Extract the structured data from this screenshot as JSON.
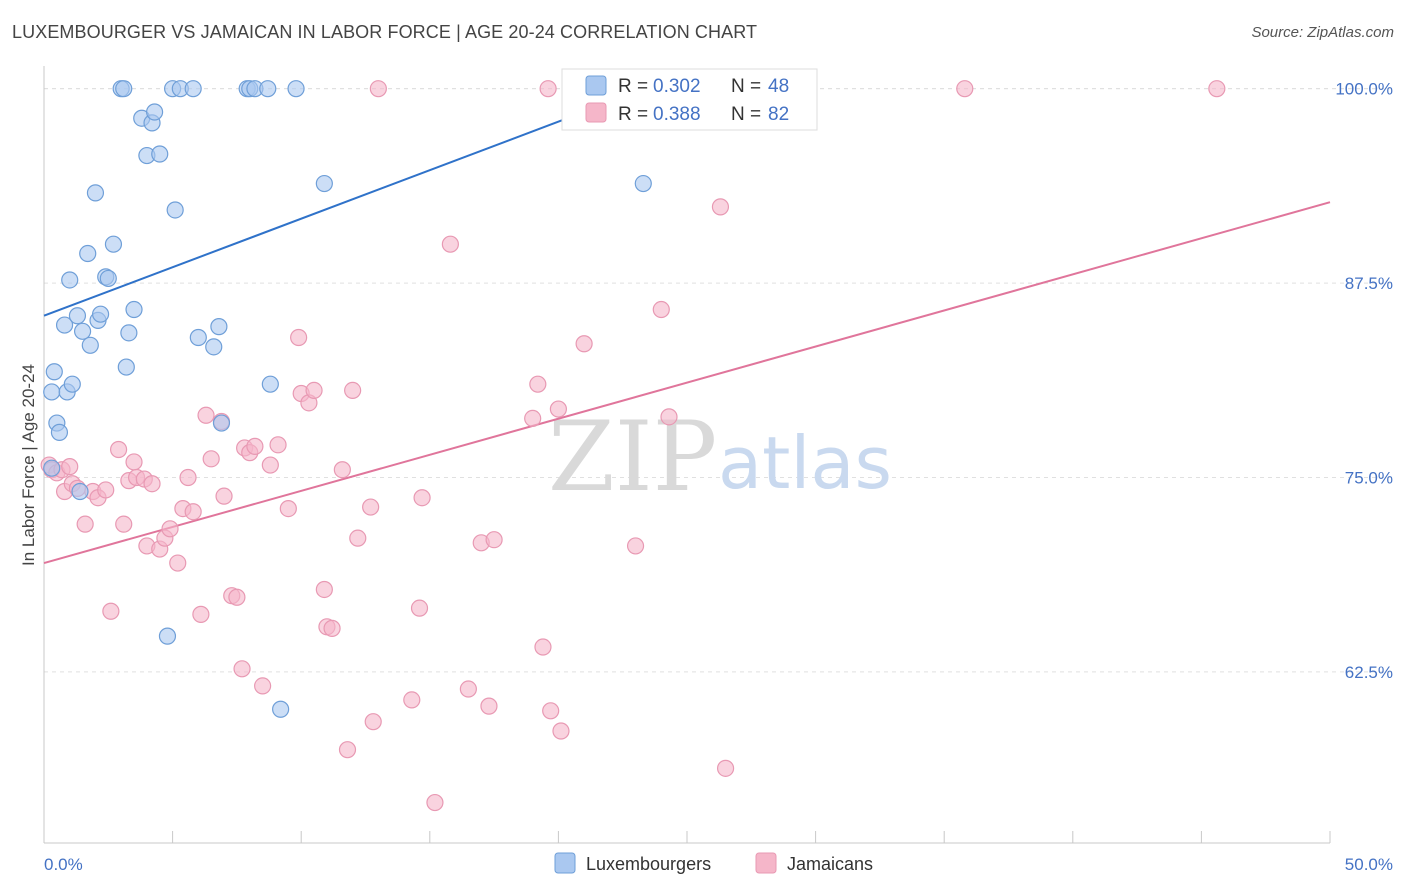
{
  "title": "LUXEMBOURGER VS JAMAICAN IN LABOR FORCE | AGE 20-24 CORRELATION CHART",
  "source": "Source: ZipAtlas.com",
  "watermark": {
    "zip": "ZIP",
    "atlas": "atlas"
  },
  "colors": {
    "blue_fill": "#aac8f0",
    "blue_stroke": "#6f9fd8",
    "blue_line": "#2f72c9",
    "pink_fill": "#f5b6c9",
    "pink_stroke": "#e899b3",
    "pink_line": "#e0759b",
    "grid": "#e0e0e0",
    "tick_text": "#4472c4"
  },
  "legend": {
    "rows": [
      {
        "r_label": "R = ",
        "r_value": "0.302",
        "n_label": "N = ",
        "n_value": "48",
        "series": "blue"
      },
      {
        "r_label": "R = ",
        "r_value": "0.388",
        "n_label": "N = ",
        "n_value": "82",
        "series": "pink"
      }
    ]
  },
  "chart_data": {
    "type": "scatter",
    "title": "LUXEMBOURGER VS JAMAICAN IN LABOR FORCE | AGE 20-24 CORRELATION CHART",
    "xlabel": "",
    "ylabel": "In Labor Force | Age 20-24",
    "xlim": [
      0,
      50
    ],
    "ylim": [
      51.5,
      101.2
    ],
    "x_tick_labels": [
      "0.0%",
      "50.0%"
    ],
    "y_ticks": [
      62.5,
      75.0,
      87.5,
      100.0
    ],
    "y_tick_labels": [
      "62.5%",
      "75.0%",
      "87.5%",
      "100.0%"
    ],
    "grid": true,
    "legend_position": "bottom",
    "series": [
      {
        "name": "Luxembourgers",
        "color": "#aac8f0",
        "trend": {
          "x": [
            0,
            25
          ],
          "y": [
            85.4,
            101.0
          ]
        },
        "points": [
          [
            0.3,
            75.6
          ],
          [
            0.3,
            80.5
          ],
          [
            0.4,
            81.8
          ],
          [
            0.5,
            78.5
          ],
          [
            0.6,
            77.9
          ],
          [
            0.8,
            84.8
          ],
          [
            0.9,
            80.5
          ],
          [
            1.0,
            87.7
          ],
          [
            1.1,
            81.0
          ],
          [
            1.3,
            85.4
          ],
          [
            1.4,
            74.1
          ],
          [
            1.5,
            84.4
          ],
          [
            1.7,
            89.4
          ],
          [
            1.8,
            83.5
          ],
          [
            2.0,
            93.3
          ],
          [
            2.1,
            85.1
          ],
          [
            2.2,
            85.5
          ],
          [
            2.4,
            87.9
          ],
          [
            2.5,
            87.8
          ],
          [
            2.7,
            90.0
          ],
          [
            3.0,
            100.0
          ],
          [
            3.1,
            100.0
          ],
          [
            3.2,
            82.1
          ],
          [
            3.3,
            84.3
          ],
          [
            3.5,
            85.8
          ],
          [
            3.8,
            98.1
          ],
          [
            4.0,
            95.7
          ],
          [
            4.2,
            97.8
          ],
          [
            4.3,
            98.5
          ],
          [
            4.5,
            95.8
          ],
          [
            4.8,
            64.8
          ],
          [
            5.0,
            100.0
          ],
          [
            5.1,
            92.2
          ],
          [
            5.3,
            100.0
          ],
          [
            5.8,
            100.0
          ],
          [
            6.0,
            84.0
          ],
          [
            6.6,
            83.4
          ],
          [
            6.8,
            84.7
          ],
          [
            6.9,
            78.5
          ],
          [
            7.9,
            100.0
          ],
          [
            8.0,
            100.0
          ],
          [
            8.2,
            100.0
          ],
          [
            8.7,
            100.0
          ],
          [
            8.8,
            81.0
          ],
          [
            9.2,
            60.1
          ],
          [
            9.8,
            100.0
          ],
          [
            10.9,
            93.9
          ],
          [
            23.3,
            93.9
          ]
        ]
      },
      {
        "name": "Jamaicans",
        "color": "#f5b6c9",
        "trend": {
          "x": [
            0,
            50
          ],
          "y": [
            69.5,
            92.7
          ]
        },
        "points": [
          [
            0.2,
            75.8
          ],
          [
            0.3,
            75.5
          ],
          [
            0.5,
            75.3
          ],
          [
            0.7,
            75.5
          ],
          [
            0.8,
            74.1
          ],
          [
            1.0,
            75.7
          ],
          [
            1.1,
            74.6
          ],
          [
            1.3,
            74.3
          ],
          [
            1.6,
            72.0
          ],
          [
            1.9,
            74.1
          ],
          [
            2.1,
            73.7
          ],
          [
            2.4,
            74.2
          ],
          [
            2.6,
            66.4
          ],
          [
            2.9,
            76.8
          ],
          [
            3.1,
            72.0
          ],
          [
            3.3,
            74.8
          ],
          [
            3.5,
            76.0
          ],
          [
            3.6,
            75.0
          ],
          [
            3.9,
            74.9
          ],
          [
            4.0,
            70.6
          ],
          [
            4.2,
            74.6
          ],
          [
            4.5,
            70.4
          ],
          [
            4.7,
            71.1
          ],
          [
            4.9,
            71.7
          ],
          [
            5.2,
            69.5
          ],
          [
            5.4,
            73.0
          ],
          [
            5.6,
            75.0
          ],
          [
            5.8,
            72.8
          ],
          [
            6.1,
            66.2
          ],
          [
            6.3,
            79.0
          ],
          [
            6.5,
            76.2
          ],
          [
            6.9,
            78.6
          ],
          [
            7.0,
            73.8
          ],
          [
            7.3,
            67.4
          ],
          [
            7.5,
            67.3
          ],
          [
            7.7,
            62.7
          ],
          [
            7.8,
            76.9
          ],
          [
            8.0,
            76.6
          ],
          [
            8.2,
            77.0
          ],
          [
            8.5,
            61.6
          ],
          [
            8.8,
            75.8
          ],
          [
            9.1,
            77.1
          ],
          [
            9.5,
            73.0
          ],
          [
            9.9,
            84.0
          ],
          [
            10.0,
            80.4
          ],
          [
            10.3,
            79.8
          ],
          [
            10.5,
            80.6
          ],
          [
            10.9,
            67.8
          ],
          [
            11.0,
            65.4
          ],
          [
            11.2,
            65.3
          ],
          [
            11.6,
            75.5
          ],
          [
            11.8,
            57.5
          ],
          [
            12.0,
            80.6
          ],
          [
            12.2,
            71.1
          ],
          [
            12.7,
            73.1
          ],
          [
            12.8,
            59.3
          ],
          [
            13.0,
            100.0
          ],
          [
            14.3,
            60.7
          ],
          [
            14.6,
            66.6
          ],
          [
            14.7,
            73.7
          ],
          [
            15.2,
            54.1
          ],
          [
            15.8,
            90.0
          ],
          [
            16.5,
            61.4
          ],
          [
            17.0,
            70.8
          ],
          [
            17.3,
            60.3
          ],
          [
            17.5,
            71.0
          ],
          [
            19.0,
            78.8
          ],
          [
            19.2,
            81.0
          ],
          [
            19.4,
            64.1
          ],
          [
            19.6,
            100.0
          ],
          [
            19.7,
            60.0
          ],
          [
            20.0,
            79.4
          ],
          [
            20.1,
            58.7
          ],
          [
            21.0,
            83.6
          ],
          [
            23.0,
            70.6
          ],
          [
            24.0,
            85.8
          ],
          [
            24.3,
            78.9
          ],
          [
            26.3,
            92.4
          ],
          [
            26.5,
            56.3
          ],
          [
            27.2,
            100.0
          ],
          [
            35.8,
            100.0
          ],
          [
            45.6,
            100.0
          ]
        ]
      }
    ]
  }
}
